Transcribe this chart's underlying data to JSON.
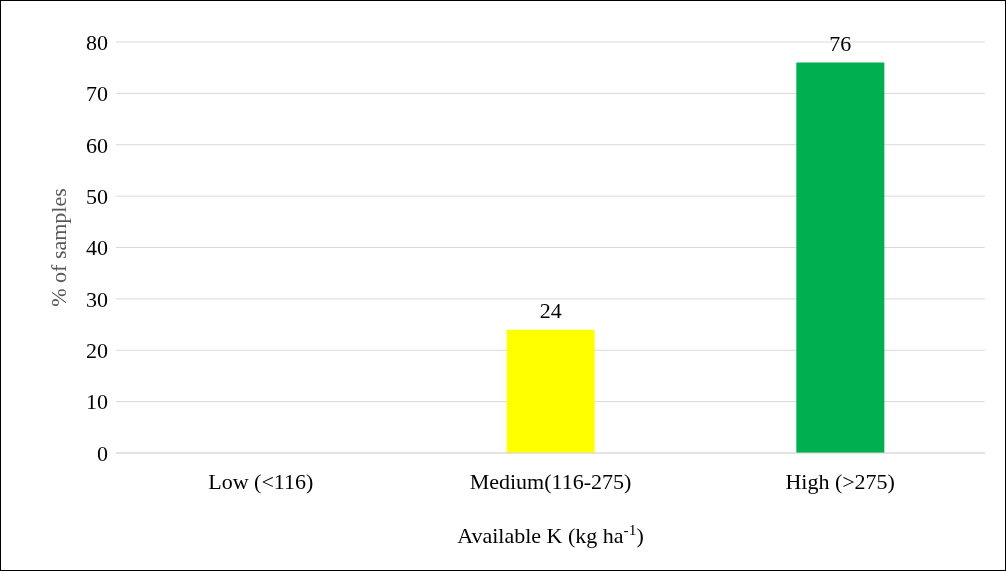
{
  "chart_data": {
    "type": "bar",
    "categories": [
      "Low (<116)",
      "Medium(116-275)",
      "High (>275)"
    ],
    "values": [
      null,
      24,
      76
    ],
    "colors": [
      null,
      "#ffff00",
      "#00b050"
    ],
    "xlabel": "Available K (kg ha$^{-1}$)",
    "ylabel": "%  of samples",
    "ylim": [
      0,
      80
    ],
    "yticks": [
      0,
      10,
      20,
      30,
      40,
      50,
      60,
      70,
      80
    ],
    "grid": "y",
    "data_labels": true
  }
}
